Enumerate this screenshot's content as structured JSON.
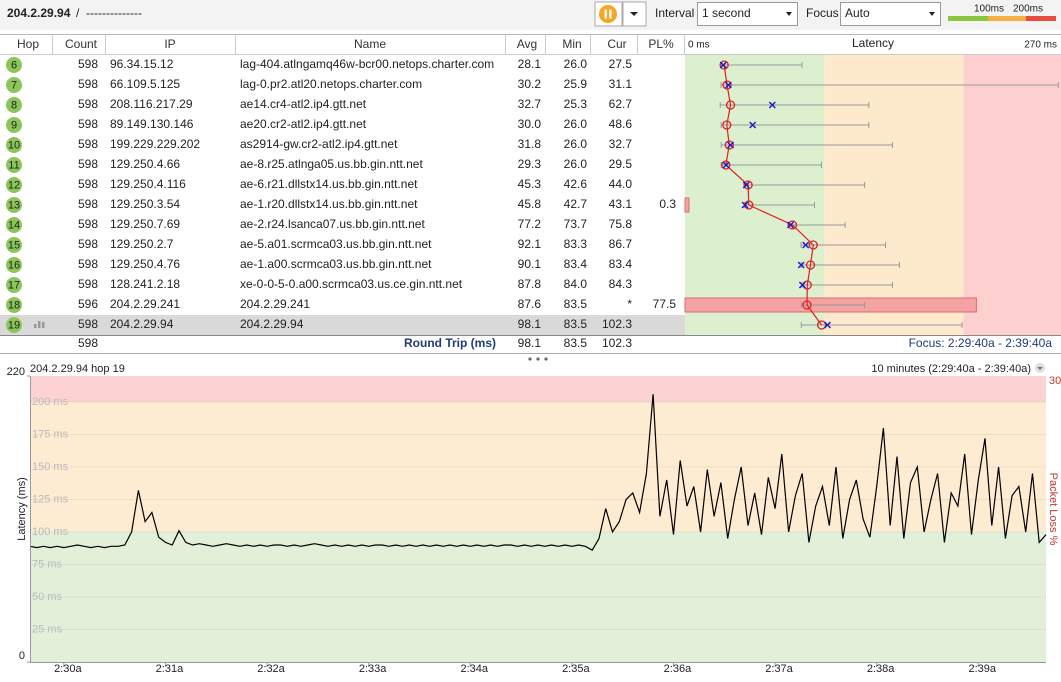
{
  "toolbar": {
    "target": "204.2.29.94",
    "separator": "/",
    "dashes": "--------------",
    "interval_label": "Interval",
    "interval": "1 second",
    "focus_label": "Focus",
    "focus": "Auto",
    "scale_labels": [
      "100ms",
      "200ms"
    ]
  },
  "table": {
    "columns": {
      "hop": "Hop",
      "count": "Count",
      "ip": "IP",
      "name": "Name",
      "avg": "Avg",
      "min": "Min",
      "cur": "Cur",
      "pl": "PL%"
    },
    "latency": {
      "title": "Latency",
      "min_label": "0 ms",
      "max_label": "270 ms",
      "xlim": [
        0,
        270
      ],
      "zones": [
        {
          "from": 0,
          "to": 100,
          "color": "#dcefcf"
        },
        {
          "from": 100,
          "to": 200,
          "color": "#fde9cc"
        },
        {
          "from": 200,
          "to": 270,
          "color": "#fdd0cf"
        }
      ]
    },
    "rows": [
      {
        "hop": "6",
        "count": "598",
        "ip": "96.34.15.12",
        "name": "lag-404.atlngamq46w-bcr00.netops.charter.com",
        "avg": "28.1",
        "min": "26.0",
        "cur": "27.5",
        "max": 84
      },
      {
        "hop": "7",
        "count": "598",
        "ip": "66.109.5.125",
        "name": "lag-0.pr2.atl20.netops.charter.com",
        "avg": "30.2",
        "min": "25.9",
        "cur": "31.1",
        "max": 268
      },
      {
        "hop": "8",
        "count": "598",
        "ip": "208.116.217.29",
        "name": "ae14.cr4-atl2.ip4.gtt.net",
        "avg": "32.7",
        "min": "25.3",
        "cur": "62.7",
        "max": 132
      },
      {
        "hop": "9",
        "count": "598",
        "ip": "89.149.130.146",
        "name": "ae20.cr2-atl2.ip4.gtt.net",
        "avg": "30.0",
        "min": "26.0",
        "cur": "48.6",
        "max": 132
      },
      {
        "hop": "10",
        "count": "598",
        "ip": "199.229.229.202",
        "name": "as2914-gw.cr2-atl2.ip4.gtt.net",
        "avg": "31.8",
        "min": "26.0",
        "cur": "32.7",
        "max": 149
      },
      {
        "hop": "11",
        "count": "598",
        "ip": "129.250.4.66",
        "name": "ae-8.r25.atlnga05.us.bb.gin.ntt.net",
        "avg": "29.3",
        "min": "26.0",
        "cur": "29.5",
        "max": 98
      },
      {
        "hop": "12",
        "count": "598",
        "ip": "129.250.4.116",
        "name": "ae-6.r21.dllstx14.us.bb.gin.ntt.net",
        "avg": "45.3",
        "min": "42.6",
        "cur": "44.0",
        "max": 129
      },
      {
        "hop": "13",
        "count": "598",
        "ip": "129.250.3.54",
        "name": "ae-1.r20.dllstx14.us.bb.gin.ntt.net",
        "avg": "45.8",
        "min": "42.7",
        "cur": "43.1",
        "pl": "0.3",
        "max": 93
      },
      {
        "hop": "14",
        "count": "598",
        "ip": "129.250.7.69",
        "name": "ae-2.r24.lsanca07.us.bb.gin.ntt.net",
        "avg": "77.2",
        "min": "73.7",
        "cur": "75.8",
        "max": 115
      },
      {
        "hop": "15",
        "count": "598",
        "ip": "129.250.2.7",
        "name": "ae-5.a01.scrmca03.us.bb.gin.ntt.net",
        "avg": "92.1",
        "min": "83.3",
        "cur": "86.7",
        "max": 144
      },
      {
        "hop": "16",
        "count": "598",
        "ip": "129.250.4.76",
        "name": "ae-1.a00.scrmca03.us.bb.gin.ntt.net",
        "avg": "90.1",
        "min": "83.4",
        "cur": "83.4",
        "max": 154
      },
      {
        "hop": "17",
        "count": "598",
        "ip": "128.241.2.18",
        "name": "xe-0-0-5-0.a00.scrmca03.us.ce.gin.ntt.net",
        "avg": "87.8",
        "min": "84.0",
        "cur": "84.3",
        "max": 149
      },
      {
        "hop": "18",
        "count": "596",
        "ip": "204.2.29.241",
        "name": "204.2.29.241",
        "avg": "87.6",
        "min": "83.5",
        "cur": "*",
        "pl": "77.5",
        "max": 129
      },
      {
        "hop": "19",
        "count": "598",
        "ip": "204.2.29.94",
        "name": "204.2.29.94",
        "avg": "98.1",
        "min": "83.5",
        "cur": "102.3",
        "max": 199,
        "selected": true
      }
    ],
    "footer": {
      "count": "598",
      "label": "Round Trip (ms)",
      "avg": "98.1",
      "min": "83.5",
      "cur": "102.3",
      "focus": "Focus: 2:29:40a - 2:39:40a"
    }
  },
  "graph": {
    "title": "204.2.29.94 hop 19",
    "range": "10 minutes (2:29:40a - 2:39:40a)",
    "ylabel": "Latency (ms)",
    "y2label": "Packet Loss %",
    "ylim": [
      0,
      220
    ],
    "yticks": [
      0,
      {
        "value": 25,
        "label": "25 ms"
      },
      {
        "value": 50,
        "label": "50 ms"
      },
      {
        "value": 75,
        "label": "75 ms"
      },
      {
        "value": 100,
        "label": "100 ms"
      },
      {
        "value": 125,
        "label": "125 ms"
      },
      {
        "value": 150,
        "label": "150 ms"
      },
      {
        "value": 175,
        "label": "175 ms"
      },
      {
        "value": 200,
        "label": "200 ms"
      },
      220
    ],
    "y2lim": [
      0,
      30
    ],
    "y2ticks": [
      30
    ],
    "xlim": [
      29.667,
      39.667
    ],
    "xticks": [
      {
        "value": 30,
        "label": "2:30a"
      },
      {
        "value": 31,
        "label": "2:31a"
      },
      {
        "value": 32,
        "label": "2:32a"
      },
      {
        "value": 33,
        "label": "2:33a"
      },
      {
        "value": 34,
        "label": "2:34a"
      },
      {
        "value": 35,
        "label": "2:35a"
      },
      {
        "value": 36,
        "label": "2:36a"
      },
      {
        "value": 37,
        "label": "2:37a"
      },
      {
        "value": 38,
        "label": "2:38a"
      },
      {
        "value": 39,
        "label": "2:39a"
      }
    ],
    "zones": [
      {
        "from": 0,
        "to": 100,
        "color": "#e2f0d9"
      },
      {
        "from": 100,
        "to": 200,
        "color": "#fdebd2"
      },
      {
        "from": 200,
        "to": 220,
        "color": "#fcd3d2"
      }
    ],
    "color": "#000000",
    "values": [
      89,
      88,
      89,
      88,
      89,
      88,
      89,
      90,
      89,
      88,
      89,
      88,
      89,
      89,
      90,
      100,
      132,
      108,
      115,
      96,
      92,
      90,
      101,
      92,
      90,
      91,
      90,
      89,
      90,
      91,
      90,
      89,
      90,
      89,
      90,
      89,
      90,
      90,
      89,
      90,
      89,
      90,
      91,
      90,
      89,
      90,
      89,
      90,
      89,
      90,
      89,
      90,
      90,
      89,
      90,
      89,
      90,
      89,
      90,
      89,
      90,
      89,
      90,
      89,
      90,
      89,
      90,
      89,
      90,
      89,
      90,
      90,
      89,
      90,
      89,
      90,
      89,
      90,
      89,
      90,
      89,
      90,
      89,
      86,
      95,
      118,
      100,
      108,
      125,
      130,
      115,
      145,
      206,
      112,
      140,
      98,
      155,
      120,
      135,
      100,
      148,
      112,
      138,
      95,
      125,
      150,
      105,
      130,
      98,
      142,
      118,
      160,
      100,
      128,
      145,
      92,
      120,
      135,
      105,
      150,
      95,
      125,
      140,
      110,
      96,
      135,
      180,
      105,
      158,
      95,
      138,
      150,
      100,
      125,
      145,
      92,
      130,
      120,
      160,
      98,
      140,
      172,
      105,
      150,
      95,
      128,
      135,
      100,
      145,
      92,
      98
    ]
  }
}
